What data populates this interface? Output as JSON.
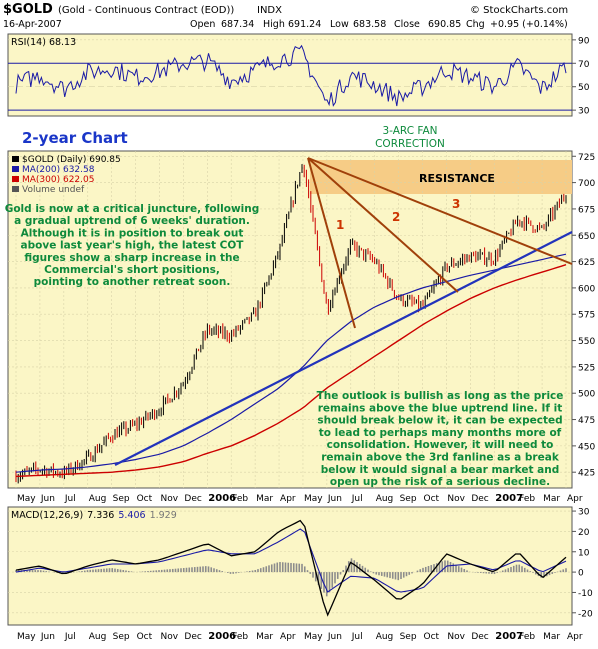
{
  "header": {
    "symbol": "$GOLD",
    "description": "(Gold - Continuous Contract (EOD))",
    "exchange": "INDX",
    "date": "16-Apr-2007",
    "open_label": "Open",
    "open": "687.34",
    "high_label": "High",
    "high": "691.24",
    "low_label": "Low",
    "low": "683.58",
    "close_label": "Close",
    "close": "690.85",
    "chg_label": "Chg",
    "chg": "+0.95 (+0.14%)",
    "watermark": "© StockCharts.com"
  },
  "rsi": {
    "label": "RSI(14) 68.13",
    "ticks": [
      "90",
      "70",
      "50",
      "30"
    ]
  },
  "price": {
    "legend": [
      {
        "text": "$GOLD (Daily) 690.85",
        "color": "#000000"
      },
      {
        "text": "MA(200) 632.58",
        "color": "#1a1aa6"
      },
      {
        "text": "MA(300) 622.05",
        "color": "#cc0000"
      },
      {
        "text": "Volume undef",
        "color": "#555555"
      }
    ],
    "ticks": [
      "725",
      "700",
      "675",
      "650",
      "625",
      "600",
      "575",
      "550",
      "525",
      "500",
      "475",
      "450",
      "425"
    ]
  },
  "annotations": {
    "chart_title": "2-year Chart",
    "fan_title": [
      "3-ARC FAN",
      "CORRECTION"
    ],
    "resistance": "RESISTANCE",
    "fan_numbers": [
      "1",
      "2",
      "3"
    ],
    "commentary_left": [
      "Gold is now at a critical juncture, following",
      "a gradual uptrend of 6 weeks' duration.",
      "Although it is in position to break out",
      "above last year's high, the latest COT",
      "figures show a sharp increase in the",
      "Commercial's short positions,",
      "pointing to another retreat soon."
    ],
    "commentary_right": [
      "The outlook is bullish as long as the price",
      "remains above the blue uptrend line. If it",
      "should break below it, it can be expected",
      "to lead to perhaps many months more of",
      "consolidation. However, it will need to",
      "remain above the 3rd fanline as a break",
      "below it would signal a bear market and",
      "open up the risk of a serious decline."
    ]
  },
  "macd": {
    "label_prefix": "MACD(12,26,9)",
    "macd_value": "7.336",
    "signal_value": "5.406",
    "hist_value": "1.929",
    "ticks": [
      "30",
      "20",
      "10",
      "0",
      "-10",
      "-20"
    ]
  },
  "x_axis": [
    "May",
    "Jun",
    "Jul",
    "Aug",
    "Sep",
    "Oct",
    "Nov",
    "Dec",
    "2006",
    "Feb",
    "Mar",
    "Apr",
    "May",
    "Jun",
    "Jul",
    "Aug",
    "Sep",
    "Oct",
    "Nov",
    "Dec",
    "2007",
    "Feb",
    "Mar",
    "Apr"
  ],
  "colors": {
    "panel_bg": "#fbf6c6",
    "up": "#000000",
    "down": "#cc0000",
    "ma200": "#1a1aa6",
    "ma300": "#cc0000",
    "fan": "#a0400a",
    "annotation_text": "#0e8a3c",
    "title_text": "#1a36c8",
    "resistance_band": "#f6cc86"
  },
  "chart_data": {
    "type": "line",
    "x": [
      "2005-05",
      "2005-06",
      "2005-07",
      "2005-08",
      "2005-09",
      "2005-10",
      "2005-11",
      "2005-12",
      "2006-01",
      "2006-02",
      "2006-03",
      "2006-04",
      "2006-05",
      "2006-06",
      "2006-07",
      "2006-08",
      "2006-09",
      "2006-10",
      "2006-11",
      "2006-12",
      "2007-01",
      "2007-02",
      "2007-03",
      "2007-04"
    ],
    "series": [
      {
        "name": "$GOLD (Daily)",
        "values": [
          422,
          428,
          424,
          438,
          460,
          470,
          485,
          510,
          560,
          555,
          575,
          635,
          720,
          580,
          640,
          625,
          590,
          582,
          620,
          630,
          628,
          665,
          655,
          690
        ]
      },
      {
        "name": "MA(200)",
        "values": [
          425,
          427,
          428,
          430,
          433,
          437,
          442,
          450,
          462,
          475,
          490,
          505,
          525,
          550,
          568,
          582,
          592,
          600,
          606,
          612,
          617,
          622,
          627,
          632
        ]
      },
      {
        "name": "MA(300)",
        "values": [
          421,
          422,
          423,
          424,
          425,
          427,
          430,
          435,
          443,
          450,
          460,
          472,
          486,
          505,
          520,
          535,
          550,
          565,
          578,
          590,
          600,
          608,
          615,
          622
        ]
      }
    ],
    "ylim": [
      410,
      730
    ],
    "rsi": {
      "ylim": [
        30,
        90
      ],
      "values": [
        52,
        60,
        48,
        62,
        66,
        58,
        63,
        70,
        72,
        55,
        64,
        74,
        78,
        35,
        60,
        52,
        40,
        50,
        65,
        58,
        50,
        68,
        48,
        68
      ]
    },
    "macd": {
      "ylim": [
        -26,
        32
      ],
      "macd": [
        1,
        3,
        -1,
        3,
        6,
        4,
        6,
        10,
        14,
        8,
        10,
        20,
        26,
        -22,
        5,
        -4,
        -14,
        -6,
        9,
        4,
        0,
        10,
        -3,
        7.3
      ],
      "signal": [
        0,
        2,
        0,
        2,
        4,
        4,
        5,
        8,
        11,
        9,
        9,
        15,
        22,
        -10,
        -2,
        -3,
        -10,
        -8,
        3,
        4,
        1,
        6,
        0,
        5.4
      ]
    }
  }
}
